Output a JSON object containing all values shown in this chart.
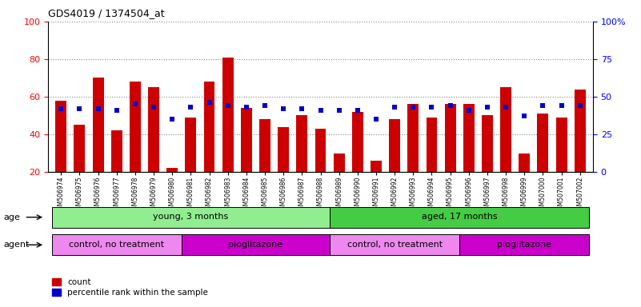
{
  "title": "GDS4019 / 1374504_at",
  "samples": [
    "GSM506974",
    "GSM506975",
    "GSM506976",
    "GSM506977",
    "GSM506978",
    "GSM506979",
    "GSM506980",
    "GSM506981",
    "GSM506982",
    "GSM506983",
    "GSM506984",
    "GSM506985",
    "GSM506986",
    "GSM506987",
    "GSM506988",
    "GSM506989",
    "GSM506990",
    "GSM506991",
    "GSM506992",
    "GSM506993",
    "GSM506994",
    "GSM506995",
    "GSM506996",
    "GSM506997",
    "GSM506998",
    "GSM506999",
    "GSM507000",
    "GSM507001",
    "GSM507002"
  ],
  "counts": [
    58,
    45,
    70,
    42,
    68,
    65,
    22,
    49,
    68,
    81,
    54,
    48,
    44,
    50,
    43,
    30,
    52,
    26,
    48,
    56,
    49,
    56,
    56,
    50,
    65,
    30,
    51,
    49,
    64
  ],
  "percentiles_pct": [
    42,
    42,
    42,
    41,
    45,
    43,
    35,
    43,
    46,
    44,
    43,
    44,
    42,
    42,
    41,
    41,
    41,
    35,
    43,
    43,
    43,
    44,
    41,
    43,
    43,
    37,
    44,
    44,
    44
  ],
  "ylim_left": [
    20,
    100
  ],
  "ylim_right": [
    0,
    100
  ],
  "left_ticks": [
    20,
    40,
    60,
    80,
    100
  ],
  "right_ticks": [
    0,
    25,
    50,
    75,
    100
  ],
  "right_tick_labels": [
    "0",
    "25",
    "50",
    "75",
    "100%"
  ],
  "bar_color": "#cc0000",
  "dot_color": "#0000cc",
  "bg_color": "#d8d8d8",
  "plot_bg": "#ffffff",
  "age_groups": [
    {
      "label": "young, 3 months",
      "start": 0,
      "end": 15,
      "color": "#90ee90"
    },
    {
      "label": "aged, 17 months",
      "start": 15,
      "end": 29,
      "color": "#44cc44"
    }
  ],
  "agent_groups": [
    {
      "label": "control, no treatment",
      "start": 0,
      "end": 7,
      "color": "#ee88ee"
    },
    {
      "label": "pioglitazone",
      "start": 7,
      "end": 15,
      "color": "#cc00cc"
    },
    {
      "label": "control, no treatment",
      "start": 15,
      "end": 22,
      "color": "#ee88ee"
    },
    {
      "label": "pioglitazone",
      "start": 22,
      "end": 29,
      "color": "#cc00cc"
    }
  ],
  "legend_count_label": "count",
  "legend_pct_label": "percentile rank within the sample",
  "age_label": "age",
  "agent_label": "agent"
}
